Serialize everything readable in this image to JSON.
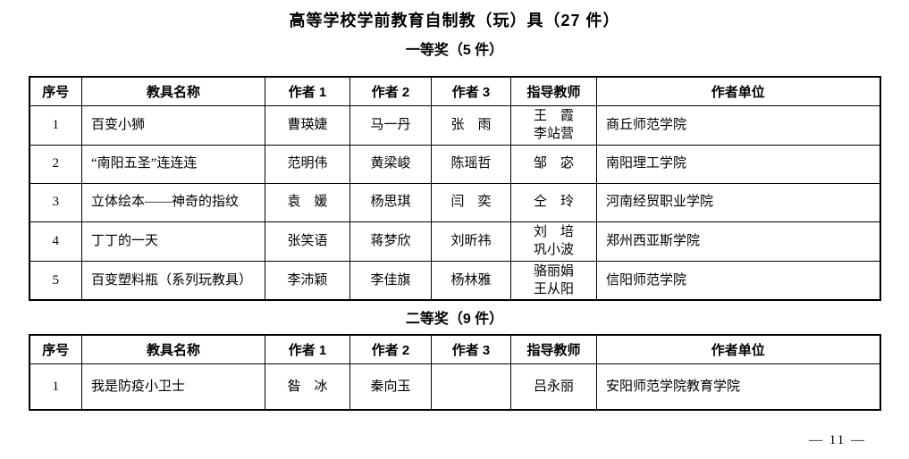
{
  "page": {
    "title": "高等学校学前教育自制教（玩）具（27 件）",
    "page_number": "— 11 —"
  },
  "sections": [
    {
      "heading": "一等奖（5 件）",
      "columns": [
        "序号",
        "教具名称",
        "作者 1",
        "作者 2",
        "作者 3",
        "指导教师",
        "作者单位"
      ],
      "rows": [
        [
          "1",
          "百变小狮",
          "曹瑛婕",
          "马一丹",
          "张　雨",
          "王　霞\n李站营",
          "商丘师范学院"
        ],
        [
          "2",
          "“南阳五圣”连连连",
          "范明伟",
          "黄梁峻",
          "陈瑶哲",
          "邹　宓",
          "南阳理工学院"
        ],
        [
          "3",
          "立体绘本——神奇的指纹",
          "袁　媛",
          "杨思琪",
          "闫　奕",
          "仝　玲",
          "河南经贸职业学院"
        ],
        [
          "4",
          "丁丁的一天",
          "张笑语",
          "蒋梦欣",
          "刘昕祎",
          "刘　培\n巩小波",
          "郑州西亚斯学院"
        ],
        [
          "5",
          "百变塑料瓶（系列玩教具）",
          "李沛颖",
          "李佳旗",
          "杨林雅",
          "骆丽娟\n王从阳",
          "信阳师范学院"
        ]
      ]
    },
    {
      "heading": "二等奖（9 件）",
      "columns": [
        "序号",
        "教具名称",
        "作者 1",
        "作者 2",
        "作者 3",
        "指导教师",
        "作者单位"
      ],
      "rows": [
        [
          "1",
          "我是防疫小卫士",
          "昝　冰",
          "秦向玉",
          "",
          "吕永丽",
          "安阳师范学院教育学院"
        ]
      ]
    }
  ]
}
